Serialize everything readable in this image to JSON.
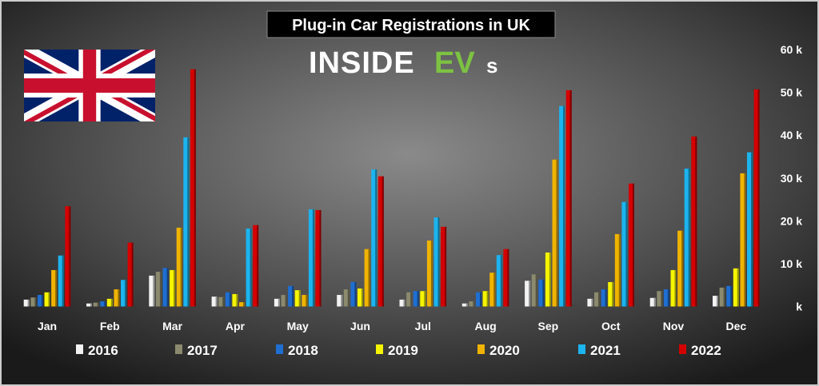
{
  "chart_data": {
    "type": "bar",
    "title": "Plug-in Car Registrations in UK",
    "logo_text": "INSIDEEVs",
    "xlabel": "",
    "ylabel": "",
    "ylim": [
      0,
      60000
    ],
    "y_ticks": [
      "k",
      "10 k",
      "20 k",
      "30 k",
      "40 k",
      "50 k",
      "60 k"
    ],
    "y_tick_values": [
      0,
      10000,
      20000,
      30000,
      40000,
      50000,
      60000
    ],
    "grid": false,
    "legend_position": "bottom",
    "categories": [
      "Jan",
      "Feb",
      "Mar",
      "Apr",
      "May",
      "Jun",
      "Jul",
      "Aug",
      "Sep",
      "Oct",
      "Nov",
      "Dec"
    ],
    "series": [
      {
        "name": "2016",
        "color": "#f2f2f2",
        "values": [
          1600,
          700,
          7200,
          2300,
          1800,
          2700,
          1600,
          700,
          6000,
          1800,
          2000,
          2500
        ]
      },
      {
        "name": "2017",
        "color": "#8c8a6e",
        "values": [
          2100,
          900,
          8100,
          2200,
          2700,
          4000,
          3300,
          1200,
          7500,
          3300,
          3600,
          4400
        ]
      },
      {
        "name": "2018",
        "color": "#1f6fd1",
        "values": [
          2700,
          1200,
          9000,
          3300,
          4800,
          5700,
          3600,
          3300,
          6300,
          4000,
          4000,
          4800
        ]
      },
      {
        "name": "2019",
        "color": "#f5f500",
        "values": [
          3300,
          1800,
          8500,
          2900,
          3800,
          4200,
          3600,
          3600,
          12600,
          5700,
          8500,
          8900
        ]
      },
      {
        "name": "2020",
        "color": "#f0b400",
        "values": [
          8500,
          4000,
          18400,
          1000,
          2700,
          13400,
          15400,
          7900,
          34300,
          16900,
          17700,
          31100
        ]
      },
      {
        "name": "2021",
        "color": "#1cb4ee",
        "values": [
          11900,
          6200,
          39500,
          18200,
          22700,
          32000,
          20800,
          12000,
          46800,
          24400,
          32200,
          36000
        ]
      },
      {
        "name": "2022",
        "color": "#d40000",
        "values": [
          23400,
          14900,
          55400,
          19000,
          22500,
          30400,
          18600,
          13400,
          50500,
          28700,
          39700,
          50700
        ]
      }
    ]
  }
}
